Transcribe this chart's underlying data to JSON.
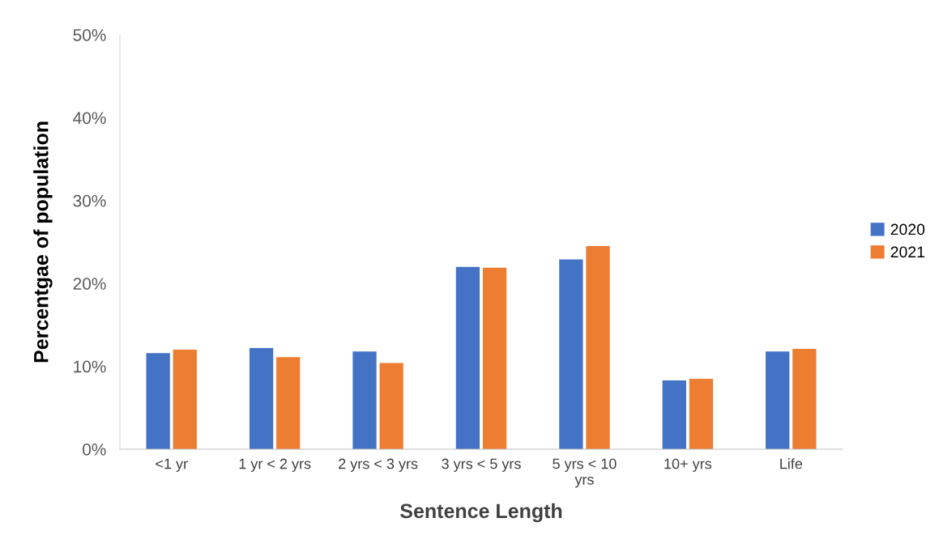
{
  "chart_data": {
    "type": "bar",
    "xlabel": "Sentence Length",
    "ylabel": "Percentgae of population",
    "categories": [
      "<1 yr",
      "1 yr < 2 yrs",
      "2 yrs < 3 yrs",
      "3 yrs < 5 yrs",
      "5 yrs < 10 yrs",
      "10+ yrs",
      "Life"
    ],
    "series": [
      {
        "name": "2020",
        "color": "#4472c4",
        "values": [
          11.6,
          12.2,
          11.8,
          22.0,
          22.9,
          8.3,
          11.8
        ]
      },
      {
        "name": "2021",
        "color": "#ed7d31",
        "values": [
          12.0,
          11.1,
          10.4,
          21.9,
          24.5,
          8.5,
          12.1
        ]
      }
    ],
    "ylim": [
      0,
      50
    ],
    "yticks": [
      {
        "value": 0,
        "label": "0%"
      },
      {
        "value": 10,
        "label": "10%"
      },
      {
        "value": 20,
        "label": "20%"
      },
      {
        "value": 30,
        "label": "30%"
      },
      {
        "value": 40,
        "label": "40%"
      },
      {
        "value": 50,
        "label": "50%"
      }
    ],
    "grid": false,
    "legend": "right"
  }
}
